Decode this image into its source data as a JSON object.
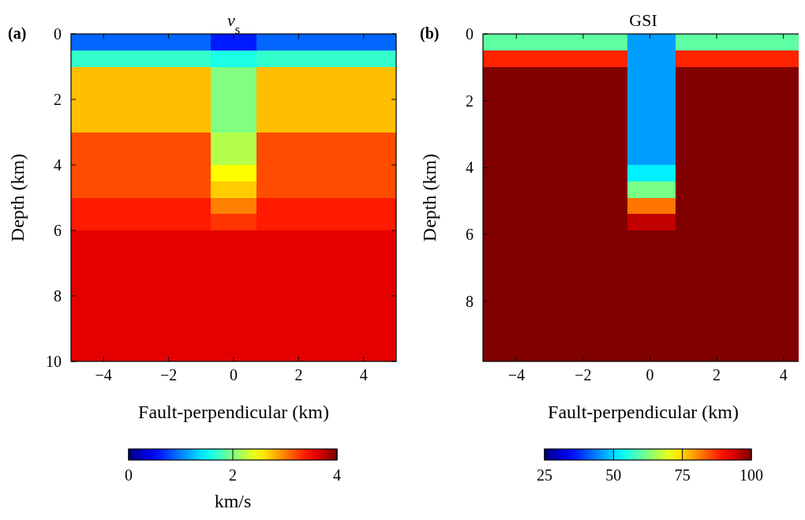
{
  "chart_data": [
    {
      "type": "heatmap",
      "title": "v$_{s}$",
      "xlabel": "Fault-perpendicular (km)",
      "ylabel": "Depth (km)",
      "annotations": [
        "(a)"
      ],
      "xlim": [
        -5,
        5
      ],
      "ylim": [
        10,
        0
      ],
      "xticks": [
        -4,
        -2,
        0,
        2,
        4
      ],
      "yticks": [
        0,
        2,
        4,
        6,
        8,
        10
      ],
      "clim": [
        0,
        4
      ],
      "cticks": [
        0,
        2,
        4
      ],
      "clabel": "km/s",
      "cells": [
        [
          0.9,
          0.9,
          0.9,
          0.9,
          0.9,
          0.9,
          0.6,
          0.6,
          0.9,
          0.9,
          0.9,
          0.9,
          0.9,
          0.9
        ],
        [
          1.7,
          1.7,
          1.7,
          1.7,
          1.7,
          1.7,
          1.6,
          1.6,
          1.7,
          1.7,
          1.7,
          1.7,
          1.7,
          1.7
        ],
        [
          2.75,
          2.75,
          2.75,
          2.75,
          2.75,
          2.75,
          2.0,
          2.0,
          2.75,
          2.75,
          2.75,
          2.75,
          2.75,
          2.75
        ],
        [
          2.75,
          2.75,
          2.75,
          2.75,
          2.75,
          2.75,
          2.0,
          2.0,
          2.75,
          2.75,
          2.75,
          2.75,
          2.75,
          2.75
        ],
        [
          2.75,
          2.75,
          2.75,
          2.75,
          2.75,
          2.75,
          2.0,
          2.0,
          2.75,
          2.75,
          2.75,
          2.75,
          2.75,
          2.75
        ],
        [
          2.75,
          2.75,
          2.75,
          2.75,
          2.75,
          2.75,
          2.0,
          2.0,
          2.75,
          2.75,
          2.75,
          2.75,
          2.75,
          2.75
        ],
        [
          3.2,
          3.2,
          3.2,
          3.2,
          3.2,
          3.2,
          2.2,
          2.2,
          3.2,
          3.2,
          3.2,
          3.2,
          3.2,
          3.2
        ],
        [
          3.2,
          3.2,
          3.2,
          3.2,
          3.2,
          3.2,
          2.2,
          2.2,
          3.2,
          3.2,
          3.2,
          3.2,
          3.2,
          3.2
        ],
        [
          3.2,
          3.2,
          3.2,
          3.2,
          3.2,
          3.2,
          2.5,
          2.5,
          3.2,
          3.2,
          3.2,
          3.2,
          3.2,
          3.2
        ],
        [
          3.2,
          3.2,
          3.2,
          3.2,
          3.2,
          3.2,
          2.7,
          2.7,
          3.2,
          3.2,
          3.2,
          3.2,
          3.2,
          3.2
        ],
        [
          3.4,
          3.4,
          3.4,
          3.4,
          3.4,
          3.4,
          3.0,
          3.0,
          3.4,
          3.4,
          3.4,
          3.4,
          3.4,
          3.4
        ],
        [
          3.4,
          3.4,
          3.4,
          3.4,
          3.4,
          3.4,
          3.3,
          3.3,
          3.4,
          3.4,
          3.4,
          3.4,
          3.4,
          3.4
        ],
        [
          3.6,
          3.6,
          3.6,
          3.6,
          3.6,
          3.6,
          3.6,
          3.6,
          3.6,
          3.6,
          3.6,
          3.6,
          3.6,
          3.6
        ],
        [
          3.6,
          3.6,
          3.6,
          3.6,
          3.6,
          3.6,
          3.6,
          3.6,
          3.6,
          3.6,
          3.6,
          3.6,
          3.6,
          3.6
        ],
        [
          3.6,
          3.6,
          3.6,
          3.6,
          3.6,
          3.6,
          3.6,
          3.6,
          3.6,
          3.6,
          3.6,
          3.6,
          3.6,
          3.6
        ],
        [
          3.6,
          3.6,
          3.6,
          3.6,
          3.6,
          3.6,
          3.6,
          3.6,
          3.6,
          3.6,
          3.6,
          3.6,
          3.6,
          3.6
        ],
        [
          3.6,
          3.6,
          3.6,
          3.6,
          3.6,
          3.6,
          3.6,
          3.6,
          3.6,
          3.6,
          3.6,
          3.6,
          3.6,
          3.6
        ],
        [
          3.6,
          3.6,
          3.6,
          3.6,
          3.6,
          3.6,
          3.6,
          3.6,
          3.6,
          3.6,
          3.6,
          3.6,
          3.6,
          3.6
        ],
        [
          3.6,
          3.6,
          3.6,
          3.6,
          3.6,
          3.6,
          3.6,
          3.6,
          3.6,
          3.6,
          3.6,
          3.6,
          3.6,
          3.6
        ],
        [
          3.6,
          3.6,
          3.6,
          3.6,
          3.6,
          3.6,
          3.6,
          3.6,
          3.6,
          3.6,
          3.6,
          3.6,
          3.6,
          3.6
        ]
      ]
    },
    {
      "type": "heatmap",
      "title": "GSI",
      "xlabel": "Fault-perpendicular (km)",
      "ylabel": "Depth (km)",
      "annotations": [
        "(b)"
      ],
      "xlim": [
        -5,
        4.6
      ],
      "ylim": [
        9.8,
        0
      ],
      "xticks": [
        -4,
        -2,
        0,
        2,
        4
      ],
      "yticks": [
        0,
        2,
        4,
        6,
        8
      ],
      "clim": [
        25,
        100
      ],
      "cticks": [
        25,
        50,
        75,
        100
      ],
      "cells": [
        [
          60,
          60,
          60,
          60,
          60,
          60,
          60,
          60,
          60,
          46,
          46,
          46,
          60,
          60,
          60,
          60,
          60,
          60,
          60,
          60
        ],
        [
          88,
          88,
          88,
          88,
          88,
          88,
          88,
          88,
          88,
          46,
          46,
          46,
          88,
          88,
          88,
          88,
          88,
          88,
          88,
          88
        ],
        [
          100,
          100,
          100,
          100,
          100,
          100,
          100,
          100,
          100,
          46,
          46,
          46,
          100,
          100,
          100,
          100,
          100,
          100,
          100,
          100
        ],
        [
          100,
          100,
          100,
          100,
          100,
          100,
          100,
          100,
          100,
          46,
          46,
          46,
          100,
          100,
          100,
          100,
          100,
          100,
          100,
          100
        ],
        [
          100,
          100,
          100,
          100,
          100,
          100,
          100,
          100,
          100,
          46,
          46,
          46,
          100,
          100,
          100,
          100,
          100,
          100,
          100,
          100
        ],
        [
          100,
          100,
          100,
          100,
          100,
          100,
          100,
          100,
          100,
          46,
          46,
          46,
          100,
          100,
          100,
          100,
          100,
          100,
          100,
          100
        ],
        [
          100,
          100,
          100,
          100,
          100,
          100,
          100,
          100,
          100,
          46,
          46,
          46,
          100,
          100,
          100,
          100,
          100,
          100,
          100,
          100
        ],
        [
          100,
          100,
          100,
          100,
          100,
          100,
          100,
          100,
          100,
          46,
          46,
          46,
          100,
          100,
          100,
          100,
          100,
          100,
          100,
          100
        ],
        [
          100,
          100,
          100,
          100,
          100,
          100,
          100,
          100,
          100,
          52,
          52,
          52,
          100,
          100,
          100,
          100,
          100,
          100,
          100,
          100
        ],
        [
          100,
          100,
          100,
          100,
          100,
          100,
          100,
          100,
          100,
          62,
          62,
          62,
          100,
          100,
          100,
          100,
          100,
          100,
          100,
          100
        ],
        [
          100,
          100,
          100,
          100,
          100,
          100,
          100,
          100,
          100,
          82,
          82,
          82,
          100,
          100,
          100,
          100,
          100,
          100,
          100,
          100
        ],
        [
          100,
          100,
          100,
          100,
          100,
          100,
          100,
          100,
          100,
          95,
          95,
          95,
          100,
          100,
          100,
          100,
          100,
          100,
          100,
          100
        ],
        [
          100,
          100,
          100,
          100,
          100,
          100,
          100,
          100,
          100,
          100,
          100,
          100,
          100,
          100,
          100,
          100,
          100,
          100,
          100,
          100
        ],
        [
          100,
          100,
          100,
          100,
          100,
          100,
          100,
          100,
          100,
          100,
          100,
          100,
          100,
          100,
          100,
          100,
          100,
          100,
          100,
          100
        ],
        [
          100,
          100,
          100,
          100,
          100,
          100,
          100,
          100,
          100,
          100,
          100,
          100,
          100,
          100,
          100,
          100,
          100,
          100,
          100,
          100
        ],
        [
          100,
          100,
          100,
          100,
          100,
          100,
          100,
          100,
          100,
          100,
          100,
          100,
          100,
          100,
          100,
          100,
          100,
          100,
          100,
          100
        ],
        [
          100,
          100,
          100,
          100,
          100,
          100,
          100,
          100,
          100,
          100,
          100,
          100,
          100,
          100,
          100,
          100,
          100,
          100,
          100,
          100
        ],
        [
          100,
          100,
          100,
          100,
          100,
          100,
          100,
          100,
          100,
          100,
          100,
          100,
          100,
          100,
          100,
          100,
          100,
          100,
          100,
          100
        ],
        [
          100,
          100,
          100,
          100,
          100,
          100,
          100,
          100,
          100,
          100,
          100,
          100,
          100,
          100,
          100,
          100,
          100,
          100,
          100,
          100
        ],
        [
          100,
          100,
          100,
          100,
          100,
          100,
          100,
          100,
          100,
          100,
          100,
          100,
          100,
          100,
          100,
          100,
          100,
          100,
          100,
          100
        ]
      ]
    }
  ]
}
